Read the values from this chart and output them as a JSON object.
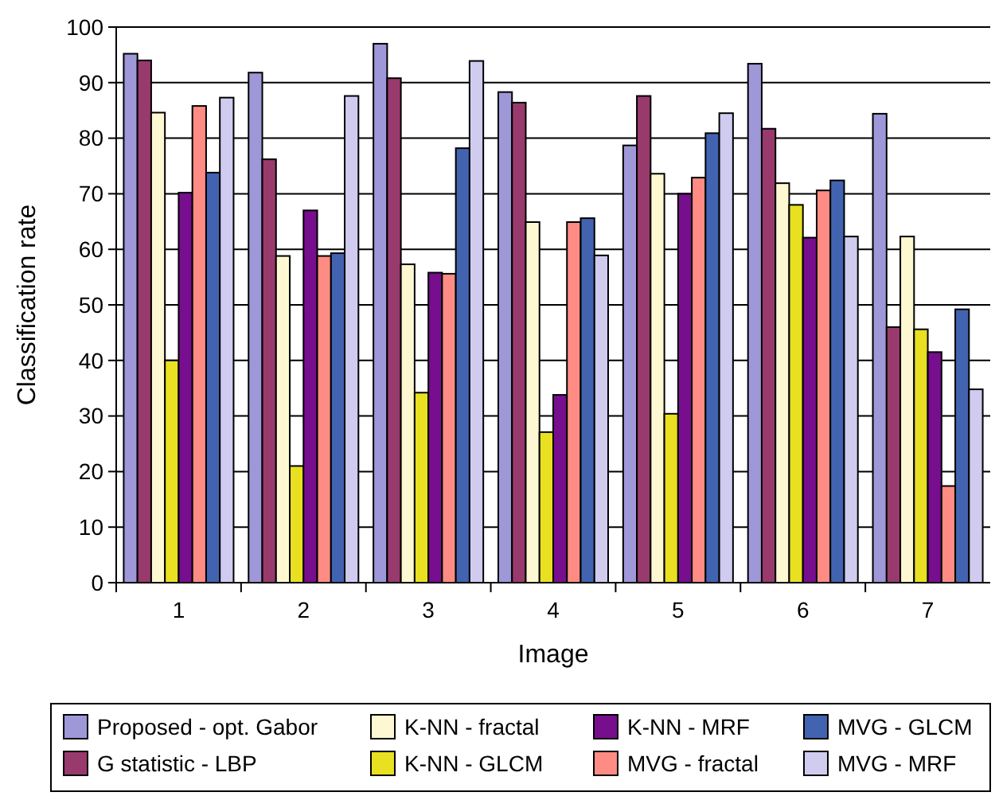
{
  "chart_data": {
    "type": "bar",
    "xlabel": "Image",
    "ylabel": "Classification rate",
    "categories": [
      "1",
      "2",
      "3",
      "4",
      "5",
      "6",
      "7"
    ],
    "ylim": [
      0,
      100
    ],
    "yticks": [
      0,
      10,
      20,
      30,
      40,
      50,
      60,
      70,
      80,
      90,
      100
    ],
    "grid": "y",
    "legend": "bottom",
    "series": [
      {
        "name": "Proposed - opt. Gabor",
        "color": "#9e98d8",
        "values": [
          95.2,
          91.8,
          97,
          88.3,
          78.7,
          93.4,
          84.4
        ]
      },
      {
        "name": "G statistic - LBP",
        "color": "#993a6d",
        "values": [
          94,
          76.2,
          90.8,
          86.4,
          87.6,
          81.7,
          46
        ]
      },
      {
        "name": "K-NN - fractal",
        "color": "#fdf8d2",
        "values": [
          84.6,
          58.8,
          57.3,
          64.9,
          73.6,
          71.9,
          62.3
        ]
      },
      {
        "name": "K-NN - GLCM",
        "color": "#e8e020",
        "values": [
          40,
          21,
          34.2,
          27.1,
          30.4,
          68,
          45.6
        ]
      },
      {
        "name": "K-NN - MRF",
        "color": "#760e8e",
        "values": [
          70.2,
          67,
          55.8,
          33.8,
          70,
          62.1,
          41.5
        ]
      },
      {
        "name": "MVG - fractal",
        "color": "#fe8c84",
        "values": [
          85.8,
          58.8,
          55.6,
          64.9,
          72.9,
          70.6,
          17.4
        ]
      },
      {
        "name": "MVG - GLCM",
        "color": "#4264b0",
        "values": [
          73.8,
          59.3,
          78.2,
          65.6,
          80.9,
          72.4,
          49.2
        ]
      },
      {
        "name": "MVG - MRF",
        "color": "#d0ccf0",
        "values": [
          87.3,
          87.6,
          93.9,
          58.9,
          84.5,
          62.3,
          34.8
        ]
      }
    ]
  }
}
